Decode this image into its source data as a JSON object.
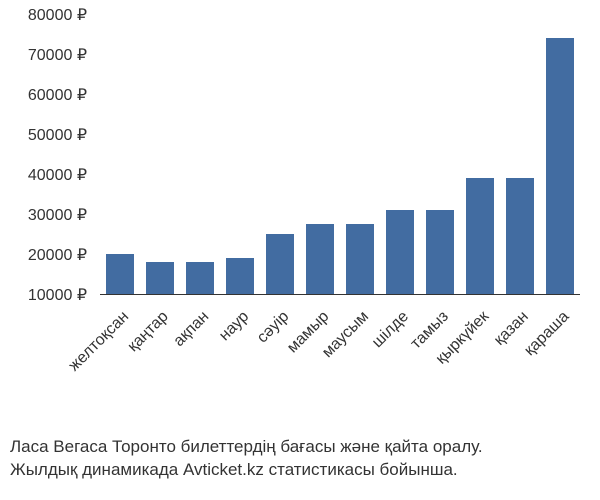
{
  "chart": {
    "type": "bar",
    "categories": [
      "желтоқсан",
      "қаңтар",
      "ақпан",
      "наур",
      "сәуір",
      "мамыр",
      "маусым",
      "шілде",
      "тамыз",
      "қыркүйек",
      "қазан",
      "қараша"
    ],
    "values": [
      20000,
      18000,
      18000,
      19000,
      25000,
      27500,
      27500,
      31000,
      31000,
      39000,
      39000,
      74000
    ],
    "bar_color": "#426ca1",
    "background_color": "#ffffff",
    "axis_color": "#333333",
    "label_color": "#333333",
    "label_fontsize": 16,
    "ylim_min": 10000,
    "ylim_max": 80000,
    "ytick_step": 10000,
    "y_tick_labels": [
      "10000 ₽",
      "20000 ₽",
      "30000 ₽",
      "40000 ₽",
      "50000 ₽",
      "60000 ₽",
      "70000 ₽",
      "80000 ₽"
    ],
    "y_tick_values": [
      10000,
      20000,
      30000,
      40000,
      50000,
      60000,
      70000,
      80000
    ],
    "bar_width_ratio": 0.72,
    "x_label_rotation": -45
  },
  "caption": {
    "line1": "Ласа Вегаса Торонто билеттердің бағасы және қайта оралу.",
    "line2": "Жылдық динамикада Avticket.kz статистикасы бойынша."
  }
}
